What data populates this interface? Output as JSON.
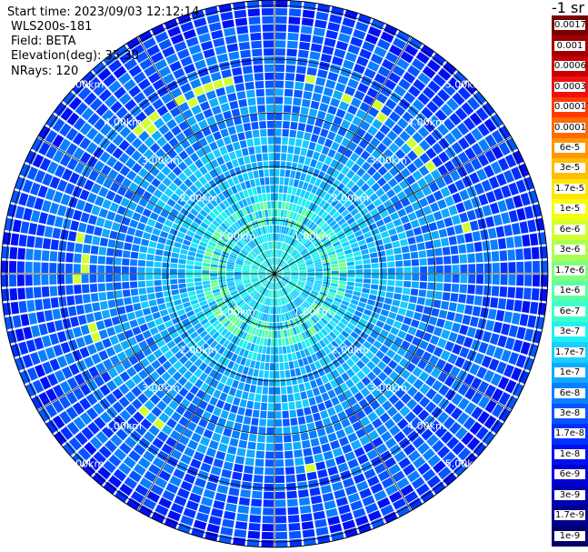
{
  "info": {
    "start_time": "Start time: 2023/09/03 12:12:14",
    "instrument": "WLS200s-181",
    "field": "Field: BETA",
    "elevation": "Elevation(deg): 35.30",
    "nrays": "NRays: 120"
  },
  "colorbar": {
    "unit_label": "-1 sr",
    "labels": [
      "0.0017",
      "0.001",
      "0.0006",
      "0.0003",
      "0.00017",
      "0.0001",
      "6e-5",
      "3e-5",
      "1.7e-5",
      "1e-5",
      "6e-6",
      "3e-6",
      "1.7e-6",
      "1e-6",
      "6e-7",
      "3e-7",
      "1.7e-7",
      "1e-7",
      "6e-8",
      "3e-8",
      "1.7e-8",
      "1e-8",
      "6e-9",
      "3e-9",
      "1.7e-9",
      "1e-9"
    ],
    "colors": [
      "#7a0000",
      "#a00000",
      "#c80000",
      "#ee1010",
      "#ff3a00",
      "#ff6a00",
      "#ff9600",
      "#ffbe00",
      "#ffe600",
      "#f4ff10",
      "#d2ff30",
      "#aaff52",
      "#80ff80",
      "#5cffa6",
      "#3cffcc",
      "#20f0f0",
      "#18cfff",
      "#10aaff",
      "#0a80ff",
      "#0656ff",
      "#0030ff",
      "#0010f2",
      "#0000d2",
      "#0000b0",
      "#00008c",
      "#000068"
    ]
  },
  "chart_data": {
    "type": "heatmap",
    "projection": "polar-ppi",
    "n_rays": 120,
    "range_rings_km": [
      1,
      2,
      3,
      4,
      5
    ],
    "range_ring_labels": [
      "1.00km",
      "2.00km",
      "3.00km",
      "4.00km",
      "5.00km"
    ],
    "radial_lines_deg": [
      0,
      30,
      60,
      90,
      120,
      150,
      180,
      210,
      240,
      270,
      300,
      330
    ],
    "max_range_km": 5.1,
    "field": "BETA",
    "elevation_deg": 35.3
  }
}
